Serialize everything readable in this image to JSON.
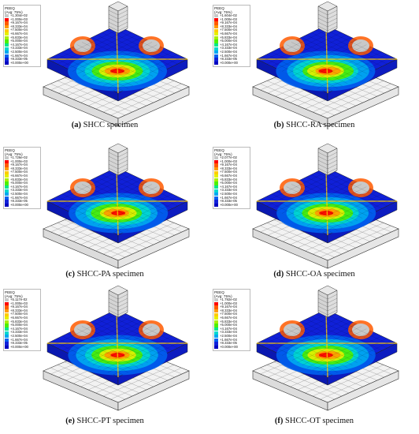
{
  "panels": [
    {
      "id": "a",
      "letter": "(a)",
      "caption": "SHCC specimen",
      "legend_title": "PEEQ",
      "legend_subtitle": "(Avg: 75%)",
      "legend_values": [
        "+1.304e-02",
        "+1.000e-03",
        "+9.167e-04",
        "+8.333e-04",
        "+7.500e-04",
        "+6.667e-04",
        "+5.833e-04",
        "+5.000e-04",
        "+4.167e-04",
        "+3.333e-04",
        "+2.500e-04",
        "+1.667e-04",
        "+8.333e-05",
        "+0.000e+00"
      ]
    },
    {
      "id": "b",
      "letter": "(b)",
      "caption": "SHCC-RA specimen",
      "legend_title": "PEEQ",
      "legend_subtitle": "(Avg: 75%)",
      "legend_values": [
        "+1.604e-02",
        "+1.000e-03",
        "+9.167e-04",
        "+8.333e-04",
        "+7.500e-04",
        "+6.667e-04",
        "+5.833e-04",
        "+5.000e-04",
        "+4.167e-04",
        "+3.333e-04",
        "+2.500e-04",
        "+1.667e-04",
        "+8.333e-05",
        "+0.000e+00"
      ]
    },
    {
      "id": "c",
      "letter": "(c)",
      "caption": "SHCC-PA specimen",
      "legend_title": "PEEQ",
      "legend_subtitle": "(Avg: 75%)",
      "legend_values": [
        "+1.726e-02",
        "+1.000e-03",
        "+9.167e-04",
        "+8.333e-04",
        "+7.500e-04",
        "+6.667e-04",
        "+5.833e-04",
        "+5.000e-04",
        "+4.167e-04",
        "+3.333e-04",
        "+2.500e-04",
        "+1.667e-04",
        "+8.333e-05",
        "+0.000e+00"
      ]
    },
    {
      "id": "d",
      "letter": "(d)",
      "caption": "SHCC-OA specimen",
      "legend_title": "PEEQ",
      "legend_subtitle": "(Avg: 75%)",
      "legend_values": [
        "+2.077e-02",
        "+1.000e-03",
        "+9.167e-04",
        "+8.333e-04",
        "+7.500e-04",
        "+6.667e-04",
        "+5.833e-04",
        "+5.000e-04",
        "+4.167e-04",
        "+3.333e-04",
        "+2.500e-04",
        "+1.667e-04",
        "+8.333e-05",
        "+0.000e+00"
      ]
    },
    {
      "id": "e",
      "letter": "(e)",
      "caption": "SHCC-PT specimen",
      "legend_title": "PEEQ",
      "legend_subtitle": "(Avg: 75%)",
      "legend_values": [
        "+5.117e-02",
        "+1.000e-03",
        "+9.167e-04",
        "+8.333e-04",
        "+7.500e-04",
        "+6.667e-04",
        "+5.833e-04",
        "+5.000e-04",
        "+4.167e-04",
        "+3.333e-04",
        "+2.500e-04",
        "+1.667e-04",
        "+8.333e-05",
        "+0.000e+00"
      ]
    },
    {
      "id": "f",
      "letter": "(f)",
      "caption": "SHCC-OT specimen",
      "legend_title": "PEEQ",
      "legend_subtitle": "(Avg: 75%)",
      "legend_values": [
        "+1.792e-02",
        "+1.000e-03",
        "+9.167e-04",
        "+8.333e-04",
        "+7.500e-04",
        "+6.667e-04",
        "+5.833e-04",
        "+5.000e-04",
        "+4.167e-04",
        "+3.333e-04",
        "+2.500e-04",
        "+1.667e-04",
        "+8.333e-05",
        "+0.000e+00"
      ]
    }
  ],
  "legend_colors": [
    "#c8c8c8",
    "#ff0000",
    "#ff5a00",
    "#ff9900",
    "#ffcc00",
    "#e5f000",
    "#a8f000",
    "#4df000",
    "#00e88a",
    "#00d8d0",
    "#00a8f0",
    "#0060f0",
    "#1020d8",
    "#0000c0"
  ]
}
